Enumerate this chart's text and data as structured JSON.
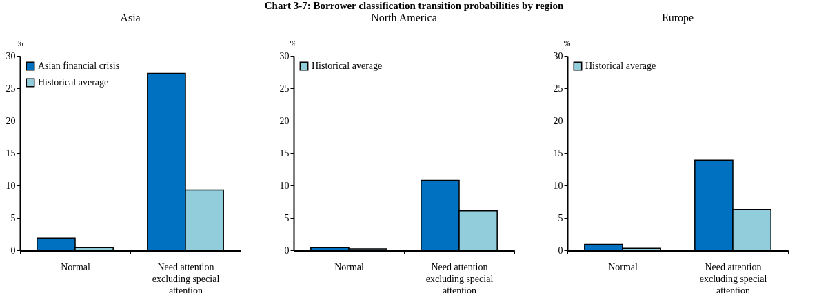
{
  "chart_data": [
    {
      "type": "bar",
      "title": "Asia",
      "annotations": [
        "Chart 3-7: Borrower classification transition probabilities by region"
      ],
      "ylabel": "%",
      "categories": [
        "Normal",
        "Need attention excluding special attention"
      ],
      "ylim": [
        0,
        30
      ],
      "yticks": [
        0,
        5,
        10,
        15,
        20,
        25,
        30
      ],
      "grid": false,
      "legend": "top left",
      "series": [
        {
          "name": "Asian financial crisis",
          "color": "#0070c0",
          "values": [
            1.9,
            27.3
          ]
        },
        {
          "name": "Historical average",
          "color": "#92cddc",
          "values": [
            0.4,
            9.3
          ]
        }
      ]
    },
    {
      "type": "bar",
      "title": "North America",
      "ylabel": "%",
      "categories": [
        "Normal",
        "Need attention excluding special attention"
      ],
      "ylim": [
        0,
        30
      ],
      "yticks": [
        0,
        5,
        10,
        15,
        20,
        25,
        30
      ],
      "grid": false,
      "legend": "top left",
      "series": [
        {
          "color": "#0070c0",
          "values": [
            0.4,
            10.8
          ]
        },
        {
          "name": "Historical average",
          "color": "#92cddc",
          "values": [
            0.2,
            6.1
          ]
        }
      ]
    },
    {
      "type": "bar",
      "title": "Europe",
      "ylabel": "%",
      "categories": [
        "Normal",
        "Need attention excluding special attention"
      ],
      "ylim": [
        0,
        30
      ],
      "yticks": [
        0,
        5,
        10,
        15,
        20,
        25,
        30
      ],
      "grid": false,
      "legend": "top left",
      "series": [
        {
          "color": "#0070c0",
          "values": [
            0.9,
            13.9
          ]
        },
        {
          "name": "Historical average",
          "color": "#92cddc",
          "values": [
            0.3,
            6.3
          ]
        }
      ]
    }
  ]
}
